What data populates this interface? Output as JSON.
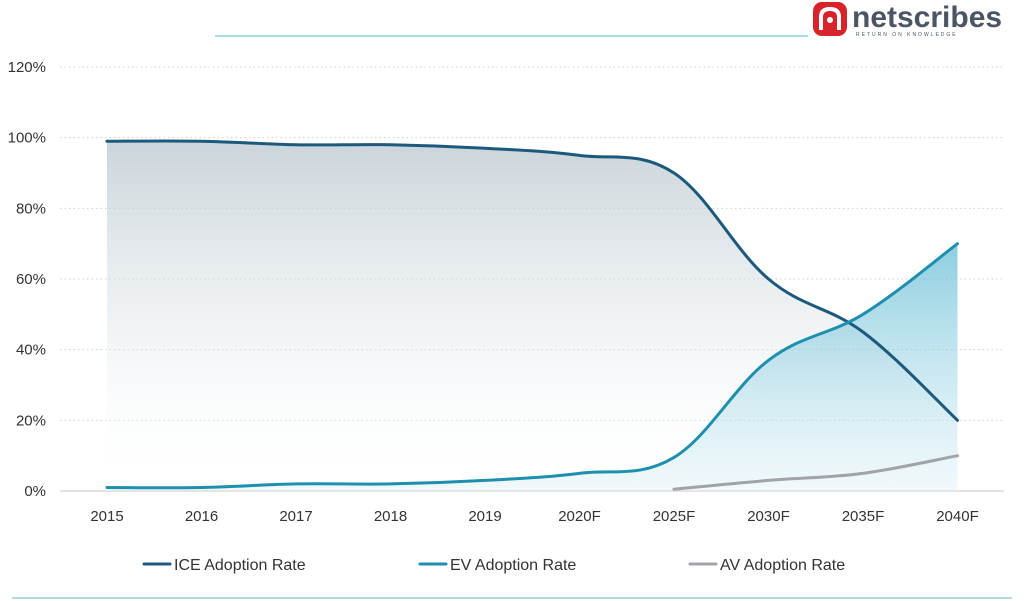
{
  "brand": {
    "name": "netscribes",
    "tagline": "RETURN ON KNOWLEDGE",
    "logo_color": "#d8232a"
  },
  "chart_data": {
    "type": "line",
    "title": "",
    "xlabel": "",
    "ylabel": "",
    "ylim": [
      0,
      120
    ],
    "yticks": [
      0,
      20,
      40,
      60,
      80,
      100,
      120
    ],
    "ytick_suffix": "%",
    "grid": "horizontal-dotted",
    "legend_position": "bottom",
    "categories": [
      "2015",
      "2016",
      "2017",
      "2018",
      "2019",
      "2020F",
      "2025F",
      "2030F",
      "2035F",
      "2040F"
    ],
    "series": [
      {
        "name": "ICE Adoption Rate",
        "color": "#1c5a7d",
        "values": [
          99,
          99,
          98,
          98,
          97,
          95,
          90,
          60,
          45,
          20
        ]
      },
      {
        "name": "EV Adoption Rate",
        "color": "#1e8fae",
        "values": [
          1,
          1,
          2,
          2,
          3,
          5,
          9.5,
          37,
          50,
          70
        ]
      },
      {
        "name": "AV Adoption Rate",
        "color": "#a0a4a8",
        "values": [
          null,
          null,
          null,
          null,
          null,
          null,
          0.5,
          3,
          5,
          10
        ]
      }
    ]
  }
}
